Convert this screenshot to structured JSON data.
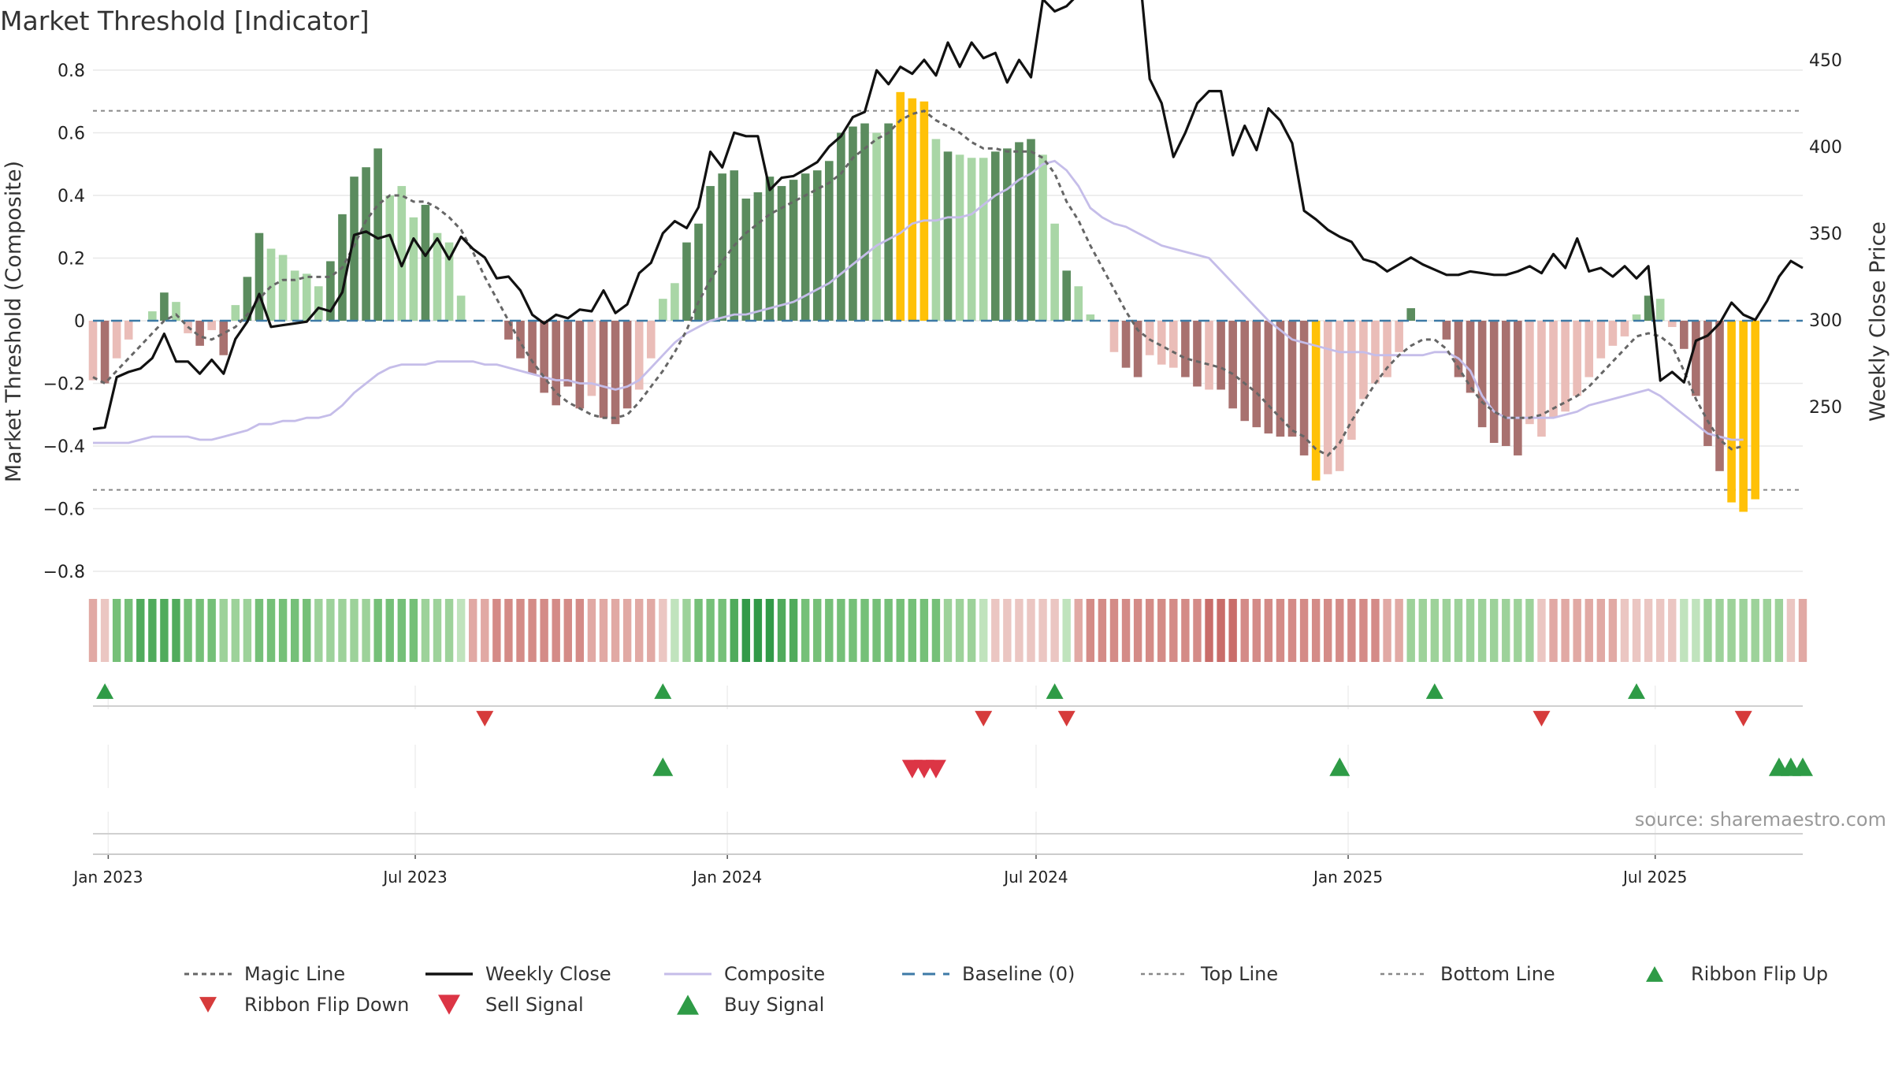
{
  "chart_data": {
    "type": "bar",
    "title": "Market Threshold [Indicator]",
    "ylabel_left": "Market Threshold (Composite)",
    "ylabel_right": "Weekly Close Price",
    "source": "source: sharemaestro.com",
    "left_ticks": [
      "0.8",
      "0.6",
      "0.4",
      "0.2",
      "0",
      "−0.2",
      "−0.4",
      "−0.6",
      "−0.8"
    ],
    "right_ticks": [
      "500",
      "450",
      "400",
      "350",
      "300",
      "250"
    ],
    "date_ticks": [
      "Jan 2023",
      "Jul 2023",
      "Jan 2024",
      "Jul 2024",
      "Jan 2025",
      "Jul 2025"
    ],
    "ylim_left": [
      -0.8,
      0.8
    ],
    "ylim_right": [
      235,
      510
    ],
    "top_line": 0.67,
    "bottom_line": -0.54,
    "x_start": "2022-12-23",
    "x_end": "2025-09-26",
    "weeks": [
      "2022-12-23",
      "2022-12-30",
      "2023-01-06",
      "2023-01-13",
      "2023-01-20",
      "2023-01-27",
      "2023-02-03",
      "2023-02-10",
      "2023-02-17",
      "2023-02-24",
      "2023-03-03",
      "2023-03-10",
      "2023-03-17",
      "2023-03-24",
      "2023-03-31",
      "2023-04-07",
      "2023-04-14",
      "2023-04-21",
      "2023-04-28",
      "2023-05-05",
      "2023-05-12",
      "2023-05-19",
      "2023-05-26",
      "2023-06-02",
      "2023-06-09",
      "2023-06-16",
      "2023-06-23",
      "2023-06-30",
      "2023-07-07",
      "2023-07-14",
      "2023-07-21",
      "2023-07-28",
      "2023-08-04",
      "2023-08-11",
      "2023-08-18",
      "2023-08-25",
      "2023-09-01",
      "2023-09-08",
      "2023-09-15",
      "2023-09-22",
      "2023-09-29",
      "2023-10-06",
      "2023-10-13",
      "2023-10-20",
      "2023-10-27",
      "2023-11-03",
      "2023-11-10",
      "2023-11-17",
      "2023-11-24",
      "2023-12-01",
      "2023-12-08",
      "2023-12-15",
      "2023-12-22",
      "2023-12-29",
      "2024-01-05",
      "2024-01-12",
      "2024-01-19",
      "2024-01-26",
      "2024-02-02",
      "2024-02-09",
      "2024-02-16",
      "2024-02-23",
      "2024-03-01",
      "2024-03-08",
      "2024-03-15",
      "2024-03-22",
      "2024-03-29",
      "2024-04-05",
      "2024-04-12",
      "2024-04-19",
      "2024-04-26",
      "2024-05-03",
      "2024-05-10",
      "2024-05-17",
      "2024-05-24",
      "2024-05-31",
      "2024-06-07",
      "2024-06-14",
      "2024-06-21",
      "2024-06-28",
      "2024-07-05",
      "2024-07-12",
      "2024-07-19",
      "2024-07-26",
      "2024-08-02",
      "2024-08-09",
      "2024-08-16",
      "2024-08-23",
      "2024-08-30",
      "2024-09-06",
      "2024-09-13",
      "2024-09-20",
      "2024-09-27",
      "2024-10-04",
      "2024-10-11",
      "2024-10-18",
      "2024-10-25",
      "2024-11-01",
      "2024-11-08",
      "2024-11-15",
      "2024-11-22",
      "2024-11-29",
      "2024-12-06",
      "2024-12-13",
      "2024-12-20",
      "2024-12-27",
      "2025-01-03",
      "2025-01-10",
      "2025-01-17",
      "2025-01-24",
      "2025-01-31",
      "2025-02-07",
      "2025-02-14",
      "2025-02-21",
      "2025-02-28",
      "2025-03-07",
      "2025-03-14",
      "2025-03-21",
      "2025-03-28",
      "2025-04-04",
      "2025-04-11",
      "2025-04-18",
      "2025-04-25",
      "2025-05-02",
      "2025-05-09",
      "2025-05-16",
      "2025-05-23",
      "2025-05-30",
      "2025-06-06",
      "2025-06-13",
      "2025-06-20",
      "2025-06-27",
      "2025-07-04",
      "2025-07-11",
      "2025-07-18",
      "2025-07-25",
      "2025-08-01",
      "2025-08-08",
      "2025-08-15",
      "2025-08-22",
      "2025-08-29",
      "2025-09-05",
      "2025-09-12",
      "2025-09-19",
      "2025-09-26"
    ],
    "composite_bars": [
      -0.19,
      -0.2,
      -0.12,
      -0.06,
      0,
      0.03,
      0.09,
      0.06,
      -0.04,
      -0.08,
      -0.03,
      -0.11,
      0.05,
      0.14,
      0.28,
      0.23,
      0.21,
      0.16,
      0.15,
      0.11,
      0.19,
      0.34,
      0.46,
      0.49,
      0.55,
      0.4,
      0.43,
      0.33,
      0.37,
      0.28,
      0.25,
      0.08,
      0,
      0,
      0,
      -0.06,
      -0.12,
      -0.17,
      -0.23,
      -0.27,
      -0.21,
      -0.28,
      -0.24,
      -0.31,
      -0.33,
      -0.28,
      -0.22,
      -0.12,
      0.07,
      0.12,
      0.25,
      0.31,
      0.43,
      0.47,
      0.48,
      0.39,
      0.41,
      0.46,
      0.43,
      0.45,
      0.47,
      0.48,
      0.51,
      0.6,
      0.62,
      0.63,
      0.6,
      0.63,
      0.73,
      0.71,
      0.7,
      0.58,
      0.54,
      0.53,
      0.52,
      0.52,
      0.54,
      0.55,
      0.57,
      0.58,
      0.53,
      0.31,
      0.16,
      0.11,
      0.02,
      0,
      -0.1,
      -0.15,
      -0.18,
      -0.11,
      -0.14,
      -0.15,
      -0.18,
      -0.21,
      -0.22,
      -0.22,
      -0.28,
      -0.32,
      -0.34,
      -0.36,
      -0.37,
      -0.37,
      -0.43,
      -0.51,
      -0.49,
      -0.48,
      -0.38,
      -0.25,
      -0.2,
      -0.18,
      -0.1,
      0.04,
      0,
      0,
      -0.06,
      -0.18,
      -0.23,
      -0.34,
      -0.39,
      -0.4,
      -0.43,
      -0.33,
      -0.37,
      -0.31,
      -0.29,
      -0.24,
      -0.18,
      -0.12,
      -0.08,
      -0.05,
      0.02,
      0.08,
      0.07,
      -0.02,
      -0.09,
      -0.24,
      -0.4,
      -0.48,
      -0.58,
      -0.61,
      -0.57
    ],
    "bar_classes": [
      "lneg",
      "dneg",
      "lneg",
      "lneg",
      "none",
      "lpos",
      "dpos",
      "lpos",
      "lneg",
      "dneg",
      "lneg",
      "dneg",
      "lpos",
      "dpos",
      "dpos",
      "lpos",
      "lpos",
      "lpos",
      "lpos",
      "lpos",
      "dpos",
      "dpos",
      "dpos",
      "dpos",
      "dpos",
      "lpos",
      "lpos",
      "lpos",
      "dpos",
      "lpos",
      "lpos",
      "lpos",
      "none",
      "none",
      "none",
      "dneg",
      "dneg",
      "dneg",
      "dneg",
      "dneg",
      "dneg",
      "dneg",
      "lneg",
      "dneg",
      "dneg",
      "dneg",
      "lneg",
      "lneg",
      "lpos",
      "lpos",
      "dpos",
      "dpos",
      "dpos",
      "dpos",
      "dpos",
      "dpos",
      "dpos",
      "dpos",
      "dpos",
      "dpos",
      "dpos",
      "dpos",
      "dpos",
      "dpos",
      "dpos",
      "dpos",
      "lpos",
      "dpos",
      "yel",
      "yel",
      "yel",
      "lpos",
      "dpos",
      "lpos",
      "lpos",
      "lpos",
      "dpos",
      "dpos",
      "dpos",
      "dpos",
      "lpos",
      "lpos",
      "dpos",
      "lpos",
      "lpos",
      "none",
      "lneg",
      "dneg",
      "dneg",
      "lneg",
      "lneg",
      "lneg",
      "dneg",
      "dneg",
      "lneg",
      "dneg",
      "dneg",
      "dneg",
      "dneg",
      "dneg",
      "dneg",
      "dneg",
      "dneg",
      "yel",
      "lneg",
      "lneg",
      "lneg",
      "lneg",
      "lneg",
      "lneg",
      "lneg",
      "dpos",
      "none",
      "none",
      "dneg",
      "dneg",
      "dneg",
      "dneg",
      "dneg",
      "dneg",
      "dneg",
      "lneg",
      "lneg",
      "lneg",
      "lneg",
      "lneg",
      "lneg",
      "lneg",
      "lneg",
      "lneg",
      "lpos",
      "dpos",
      "lpos",
      "lneg",
      "dneg",
      "dneg",
      "dneg",
      "dneg",
      "yel",
      "yel",
      "yel"
    ],
    "ribbon": [
      -2,
      -1,
      3,
      3,
      4,
      4,
      4,
      4,
      3,
      3,
      3,
      2,
      2,
      2,
      3,
      3,
      3,
      3,
      3,
      2,
      2,
      2,
      2,
      2,
      3,
      3,
      3,
      3,
      2,
      2,
      2,
      1,
      -2,
      -2,
      -3,
      -3,
      -3,
      -3,
      -3,
      -3,
      -3,
      -3,
      -2,
      -2,
      -2,
      -2,
      -2,
      -2,
      -1,
      1,
      2,
      3,
      3,
      3,
      4,
      5,
      5,
      5,
      4,
      4,
      3,
      3,
      3,
      3,
      3,
      3,
      3,
      3,
      3,
      3,
      3,
      3,
      2,
      2,
      2,
      1,
      -1,
      -1,
      -1,
      -1,
      -1,
      -1,
      1,
      -2,
      -3,
      -3,
      -3,
      -3,
      -3,
      -3,
      -3,
      -3,
      -3,
      -3,
      -4,
      -4,
      -4,
      -3,
      -3,
      -3,
      -3,
      -3,
      -3,
      -3,
      -3,
      -3,
      -3,
      -3,
      -3,
      -2,
      -2,
      2,
      2,
      2,
      2,
      2,
      2,
      2,
      2,
      2,
      2,
      2,
      -1,
      -2,
      -2,
      -2,
      -2,
      -2,
      -2,
      -1,
      -1,
      -1,
      -1,
      -1,
      1,
      1,
      2,
      2,
      2,
      2,
      2,
      2,
      2,
      -1,
      -2,
      -2,
      -2,
      -2
    ],
    "weekly_close": [
      237,
      238,
      267,
      270,
      272,
      278,
      292,
      276,
      276,
      269,
      277,
      269,
      289,
      299,
      315,
      296,
      297,
      298,
      299,
      307,
      305,
      316,
      349,
      351,
      347,
      349,
      331,
      347,
      337,
      347,
      335,
      348,
      341,
      336,
      324,
      325,
      317,
      303,
      298,
      303,
      301,
      306,
      305,
      317,
      304,
      309,
      327,
      333,
      350,
      357,
      353,
      365,
      397,
      388,
      408,
      406,
      406,
      375,
      382,
      383,
      387,
      391,
      400,
      406,
      417,
      420,
      444,
      436,
      446,
      442,
      450,
      441,
      460,
      446,
      460,
      451,
      454,
      437,
      450,
      440,
      485,
      478,
      481,
      488,
      488,
      495,
      502,
      512,
      511,
      439,
      425,
      394,
      408,
      425,
      432,
      432,
      395,
      412,
      398,
      422,
      415,
      402,
      363,
      358,
      352,
      348,
      345,
      335,
      333,
      328,
      332,
      336,
      332,
      329,
      326,
      326,
      328,
      327,
      326,
      326,
      328,
      331,
      327,
      338,
      330,
      347,
      328,
      330,
      325,
      331,
      324,
      331,
      265,
      270,
      264,
      288,
      291,
      298,
      310,
      303,
      300,
      311,
      325,
      334,
      330,
      340,
      329,
      341,
      337,
      338,
      336,
      294,
      292,
      291,
      290,
      282,
      279,
      272,
      278,
      300,
      313
    ],
    "magic_line": [
      -0.18,
      -0.2,
      -0.16,
      -0.12,
      -0.08,
      -0.04,
      0,
      0.02,
      -0.02,
      -0.05,
      -0.06,
      -0.04,
      -0.02,
      0.02,
      0.07,
      0.11,
      0.13,
      0.13,
      0.14,
      0.14,
      0.14,
      0.17,
      0.24,
      0.32,
      0.37,
      0.4,
      0.4,
      0.38,
      0.38,
      0.36,
      0.33,
      0.29,
      0.22,
      0.14,
      0.07,
      0,
      -0.07,
      -0.13,
      -0.18,
      -0.23,
      -0.26,
      -0.28,
      -0.3,
      -0.31,
      -0.31,
      -0.3,
      -0.26,
      -0.21,
      -0.16,
      -0.1,
      -0.03,
      0.06,
      0.13,
      0.19,
      0.24,
      0.28,
      0.31,
      0.34,
      0.36,
      0.38,
      0.4,
      0.42,
      0.44,
      0.47,
      0.52,
      0.55,
      0.58,
      0.6,
      0.64,
      0.66,
      0.67,
      0.64,
      0.62,
      0.6,
      0.57,
      0.55,
      0.55,
      0.54,
      0.54,
      0.54,
      0.52,
      0.47,
      0.38,
      0.32,
      0.24,
      0.17,
      0.1,
      0.03,
      -0.03,
      -0.06,
      -0.08,
      -0.1,
      -0.12,
      -0.13,
      -0.14,
      -0.15,
      -0.17,
      -0.2,
      -0.23,
      -0.27,
      -0.31,
      -0.35,
      -0.37,
      -0.41,
      -0.43,
      -0.39,
      -0.32,
      -0.26,
      -0.2,
      -0.15,
      -0.11,
      -0.08,
      -0.06,
      -0.06,
      -0.09,
      -0.15,
      -0.21,
      -0.26,
      -0.29,
      -0.31,
      -0.31,
      -0.31,
      -0.3,
      -0.28,
      -0.26,
      -0.24,
      -0.21,
      -0.17,
      -0.13,
      -0.09,
      -0.05,
      -0.04,
      -0.05,
      -0.08,
      -0.16,
      -0.25,
      -0.32,
      -0.38,
      -0.41,
      -0.4
    ],
    "composite_line": [
      -0.39,
      -0.39,
      -0.39,
      -0.39,
      -0.38,
      -0.37,
      -0.37,
      -0.37,
      -0.37,
      -0.38,
      -0.38,
      -0.37,
      -0.36,
      -0.35,
      -0.33,
      -0.33,
      -0.32,
      -0.32,
      -0.31,
      -0.31,
      -0.3,
      -0.27,
      -0.23,
      -0.2,
      -0.17,
      -0.15,
      -0.14,
      -0.14,
      -0.14,
      -0.13,
      -0.13,
      -0.13,
      -0.13,
      -0.14,
      -0.14,
      -0.15,
      -0.16,
      -0.17,
      -0.18,
      -0.19,
      -0.19,
      -0.2,
      -0.2,
      -0.21,
      -0.22,
      -0.21,
      -0.19,
      -0.15,
      -0.11,
      -0.07,
      -0.04,
      -0.02,
      0,
      0.01,
      0.02,
      0.02,
      0.03,
      0.04,
      0.05,
      0.06,
      0.08,
      0.1,
      0.12,
      0.15,
      0.18,
      0.21,
      0.24,
      0.26,
      0.28,
      0.31,
      0.32,
      0.32,
      0.33,
      0.33,
      0.34,
      0.37,
      0.4,
      0.42,
      0.45,
      0.47,
      0.5,
      0.51,
      0.48,
      0.43,
      0.36,
      0.33,
      0.31,
      0.3,
      0.28,
      0.26,
      0.24,
      0.23,
      0.22,
      0.21,
      0.2,
      0.16,
      0.12,
      0.08,
      0.04,
      0,
      -0.03,
      -0.06,
      -0.07,
      -0.08,
      -0.09,
      -0.1,
      -0.1,
      -0.1,
      -0.11,
      -0.11,
      -0.11,
      -0.11,
      -0.11,
      -0.1,
      -0.1,
      -0.12,
      -0.16,
      -0.24,
      -0.29,
      -0.31,
      -0.31,
      -0.31,
      -0.31,
      -0.31,
      -0.3,
      -0.29,
      -0.27,
      -0.26,
      -0.25,
      -0.24,
      -0.23,
      -0.22,
      -0.24,
      -0.27,
      -0.3,
      -0.33,
      -0.36,
      -0.37,
      -0.38,
      -0.38
    ],
    "buy_signals": [
      "2023-11-24",
      "2024-12-27",
      "2025-09-12",
      "2025-09-19",
      "2025-09-26"
    ],
    "sell_signals": [
      "2024-04-19",
      "2024-04-26",
      "2024-05-03"
    ],
    "ribbon_flip_up": [
      "2022-12-30",
      "2023-11-24",
      "2024-07-12",
      "2025-02-21",
      "2025-06-20"
    ],
    "ribbon_flip_down": [
      "2023-08-11",
      "2024-05-31",
      "2024-07-19",
      "2025-04-25",
      "2025-08-22"
    ],
    "legend": [
      {
        "key": "magic",
        "label": "Magic Line"
      },
      {
        "key": "close",
        "label": "Weekly Close"
      },
      {
        "key": "composite",
        "label": "Composite"
      },
      {
        "key": "baseline",
        "label": "Baseline (0)"
      },
      {
        "key": "top",
        "label": "Top Line"
      },
      {
        "key": "bottom",
        "label": "Bottom Line"
      },
      {
        "key": "flipup",
        "label": "Ribbon Flip Up"
      },
      {
        "key": "flipdown",
        "label": "Ribbon Flip Down"
      },
      {
        "key": "sell",
        "label": "Sell Signal"
      },
      {
        "key": "buy",
        "label": "Buy Signal"
      }
    ],
    "colors": {
      "dpos": "#5b8c5e",
      "lpos": "#a9d6a6",
      "dneg": "#a8716f",
      "lneg": "#eabdb8",
      "yel": "#ffc107",
      "close": "#111111",
      "magic": "#666666",
      "composite": "#c5bde9",
      "baseline": "#3d7aa6",
      "refline": "#888888",
      "buy": "#2e9b46",
      "sell": "#dc3545",
      "flipup": "#2e9b46",
      "flipdown": "#d63b3b",
      "grid": "#e8e8e8"
    }
  }
}
